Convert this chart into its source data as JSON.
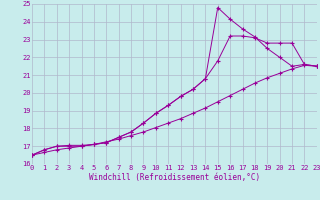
{
  "background_color": "#c8ecec",
  "grid_color": "#b0b8cc",
  "line_color": "#990099",
  "xlabel": "Windchill (Refroidissement éolien,°C)",
  "xlim": [
    0,
    23
  ],
  "ylim": [
    16,
    25
  ],
  "xtick_labels": [
    "0",
    "1",
    "2",
    "3",
    "4",
    "5",
    "6",
    "7",
    "8",
    "9",
    "10",
    "11",
    "12",
    "13",
    "14",
    "15",
    "16",
    "17",
    "18",
    "19",
    "20",
    "21",
    "22",
    "23"
  ],
  "ytick_vals": [
    16,
    17,
    18,
    19,
    20,
    21,
    22,
    23,
    24,
    25
  ],
  "series": [
    {
      "x": [
        0,
        1,
        2,
        3,
        4,
        5,
        6,
        7,
        8,
        9,
        10,
        11,
        12,
        13,
        14,
        15,
        16,
        17,
        18,
        19,
        20,
        21,
        22,
        23
      ],
      "y": [
        16.5,
        16.8,
        17.0,
        17.0,
        17.0,
        17.1,
        17.2,
        17.5,
        17.8,
        18.3,
        18.85,
        19.3,
        19.8,
        20.2,
        20.8,
        24.8,
        24.15,
        23.6,
        23.15,
        22.5,
        22.0,
        21.5,
        21.6,
        21.5
      ]
    },
    {
      "x": [
        0,
        1,
        2,
        3,
        4,
        5,
        6,
        7,
        8,
        9,
        10,
        11,
        12,
        13,
        14,
        15,
        16,
        17,
        18,
        19,
        20,
        21,
        22,
        23
      ],
      "y": [
        16.5,
        16.8,
        17.0,
        17.05,
        17.05,
        17.1,
        17.2,
        17.5,
        17.8,
        18.3,
        18.85,
        19.3,
        19.8,
        20.2,
        20.8,
        21.8,
        23.2,
        23.2,
        23.1,
        22.8,
        22.8,
        22.8,
        21.6,
        21.5
      ]
    },
    {
      "x": [
        0,
        1,
        2,
        3,
        4,
        5,
        6,
        7,
        8,
        9,
        10,
        11,
        12,
        13,
        14,
        15,
        16,
        17,
        18,
        19,
        20,
        21,
        22,
        23
      ],
      "y": [
        16.5,
        16.65,
        16.8,
        16.9,
        17.0,
        17.1,
        17.25,
        17.4,
        17.6,
        17.8,
        18.05,
        18.3,
        18.55,
        18.85,
        19.15,
        19.5,
        19.85,
        20.2,
        20.55,
        20.85,
        21.1,
        21.35,
        21.55,
        21.5
      ]
    }
  ],
  "figsize": [
    3.2,
    2.0
  ],
  "dpi": 100,
  "title_fontsize": 6,
  "tick_fontsize": 5,
  "xlabel_fontsize": 5.5
}
